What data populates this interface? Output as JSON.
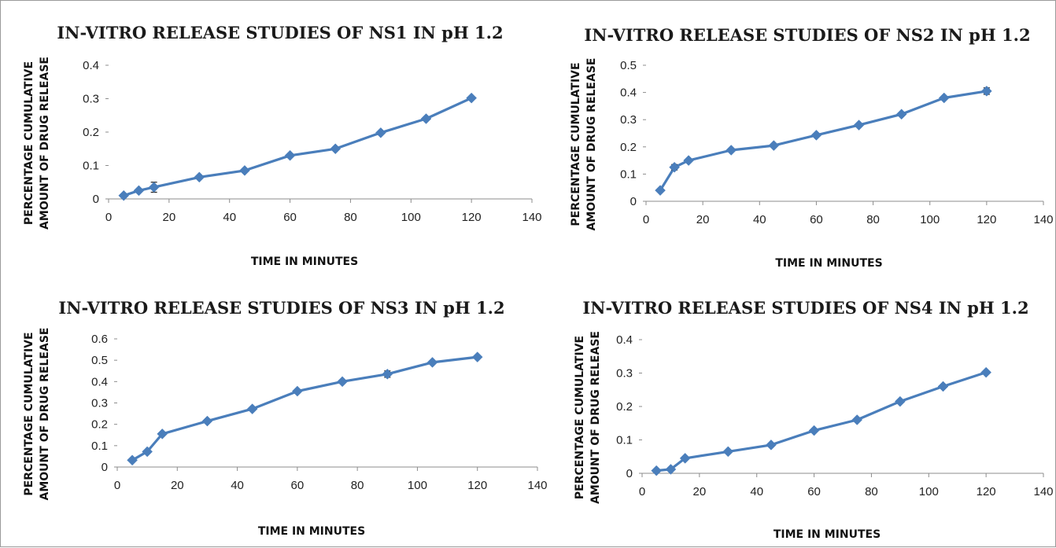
{
  "chart_data": [
    {
      "type": "line",
      "title": "IN-VITRO RELEASE STUDIES OF NS1 IN pH 1.2",
      "xlabel": "TIME IN MINUTES",
      "ylabel": [
        "PERCENTAGE CUMULATIVE",
        "AMOUNT OF DRUG RELEASE"
      ],
      "xlim": [
        0,
        140
      ],
      "ylim": [
        0,
        0.4
      ],
      "xticks": [
        "0",
        "20",
        "40",
        "60",
        "80",
        "100",
        "120",
        "140"
      ],
      "yticks": [
        "0",
        "0.1",
        "0.2",
        "0.3",
        "0.4"
      ],
      "grid": false,
      "color": "#4a7ebb",
      "series": [
        {
          "x": [
            5,
            10,
            15,
            30,
            45,
            60,
            75,
            90,
            105,
            120
          ],
          "y": [
            0.01,
            0.025,
            0.035,
            0.065,
            0.085,
            0.13,
            0.15,
            0.198,
            0.24,
            0.302
          ],
          "error": [
            0,
            0,
            0.015,
            0,
            0,
            0,
            0,
            0,
            0,
            0
          ]
        }
      ]
    },
    {
      "type": "line",
      "title": "IN-VITRO RELEASE STUDIES OF NS2  IN pH 1.2",
      "xlabel": "TIME IN MINUTES",
      "ylabel": [
        "PERCENTAGE CUMULATIVE",
        "AMOUNT OF DRUG RELEASE"
      ],
      "xlim": [
        0,
        140
      ],
      "ylim": [
        0,
        0.5
      ],
      "xticks": [
        "0",
        "20",
        "40",
        "60",
        "80",
        "100",
        "120",
        "140"
      ],
      "yticks": [
        "0",
        "0.1",
        "0.2",
        "0.3",
        "0.4",
        "0.5"
      ],
      "grid": false,
      "color": "#4a7ebb",
      "series": [
        {
          "x": [
            5,
            10,
            15,
            30,
            45,
            60,
            75,
            90,
            105,
            120
          ],
          "y": [
            0.04,
            0.125,
            0.15,
            0.188,
            0.205,
            0.243,
            0.28,
            0.32,
            0.38,
            0.405
          ],
          "error": [
            0,
            0.01,
            0,
            0,
            0,
            0,
            0,
            0,
            0,
            0.012
          ]
        }
      ]
    },
    {
      "type": "line",
      "title": "IN-VITRO RELEASE STUDIES OF NS3 IN pH 1.2",
      "xlabel": "TIME IN MINUTES",
      "ylabel": [
        "PERCENTAGE CUMULATIVE",
        "AMOUNT OF DRUG RELEASE"
      ],
      "xlim": [
        0,
        140
      ],
      "ylim": [
        0,
        0.6
      ],
      "xticks": [
        "0",
        "20",
        "40",
        "60",
        "80",
        "100",
        "120",
        "140"
      ],
      "yticks": [
        "0",
        "0.1",
        "0.2",
        "0.3",
        "0.4",
        "0.5",
        "0.6"
      ],
      "grid": false,
      "color": "#4a7ebb",
      "series": [
        {
          "x": [
            5,
            10,
            15,
            30,
            45,
            60,
            75,
            90,
            105,
            120
          ],
          "y": [
            0.032,
            0.072,
            0.155,
            0.215,
            0.272,
            0.355,
            0.4,
            0.435,
            0.49,
            0.515
          ],
          "error": [
            0,
            0,
            0,
            0,
            0,
            0,
            0,
            0.015,
            0,
            0
          ]
        }
      ]
    },
    {
      "type": "line",
      "title": "IN-VITRO RELEASE STUDIES OF NS4 IN pH 1.2",
      "xlabel": "TIME IN MINUTES",
      "ylabel": [
        "PERCENTAGE CUMULATIVE",
        "AMOUNT OF DRUG RELEASE"
      ],
      "xlim": [
        0,
        140
      ],
      "ylim": [
        0,
        0.4
      ],
      "xticks": [
        "0",
        "20",
        "40",
        "60",
        "80",
        "100",
        "120",
        "140"
      ],
      "yticks": [
        "0",
        "0.1",
        "0.2",
        "0.3",
        "0.4"
      ],
      "grid": false,
      "color": "#4a7ebb",
      "series": [
        {
          "x": [
            5,
            10,
            15,
            30,
            45,
            60,
            75,
            90,
            105,
            120
          ],
          "y": [
            0.008,
            0.012,
            0.045,
            0.065,
            0.085,
            0.128,
            0.16,
            0.215,
            0.26,
            0.302
          ],
          "error": [
            0,
            0,
            0,
            0,
            0,
            0,
            0,
            0,
            0,
            0
          ]
        }
      ]
    }
  ]
}
